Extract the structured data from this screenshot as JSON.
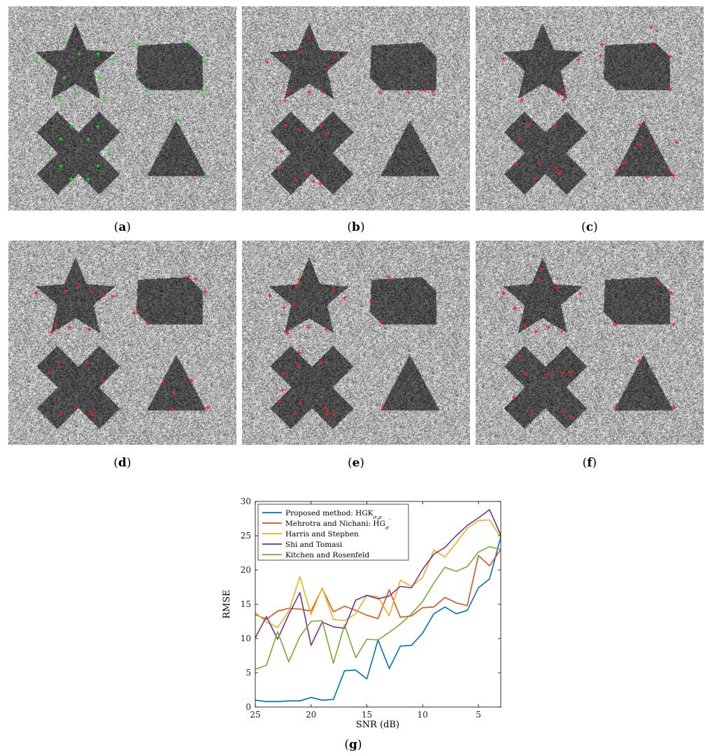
{
  "panels": [
    {
      "id": "a",
      "caption_open": "(",
      "caption_letter": "a",
      "caption_close": ")",
      "marker_color": "#22dd22"
    },
    {
      "id": "b",
      "caption_open": "(",
      "caption_letter": "b",
      "caption_close": ")",
      "marker_color": "#ff1a1a"
    },
    {
      "id": "c",
      "caption_open": "(",
      "caption_letter": "c",
      "caption_close": ")",
      "marker_color": "#ff1a1a"
    },
    {
      "id": "d",
      "caption_open": "(",
      "caption_letter": "d",
      "caption_close": ")",
      "marker_color": "#ff1a1a"
    },
    {
      "id": "e",
      "caption_open": "(",
      "caption_letter": "e",
      "caption_close": ")",
      "marker_color": "#ff1a1a"
    },
    {
      "id": "f",
      "caption_open": "(",
      "caption_letter": "f",
      "caption_close": ")",
      "marker_color": "#ff1a1a"
    }
  ],
  "chart_caption": {
    "open": "(",
    "letter": "g",
    "close": ")"
  },
  "chart_data": {
    "type": "line",
    "title": "",
    "xlabel": "SNR (dB)",
    "ylabel": "RMSE",
    "x_reversed": true,
    "xlim": [
      25,
      3
    ],
    "ylim": [
      0,
      30
    ],
    "xticks": [
      25,
      20,
      15,
      10,
      5
    ],
    "yticks": [
      0,
      5,
      10,
      15,
      20,
      25,
      30
    ],
    "grid": false,
    "legend_position": "top-left",
    "x": [
      25,
      24,
      23,
      22,
      21,
      20,
      19,
      18,
      17,
      16,
      15,
      14,
      13,
      12,
      11,
      10,
      9,
      8,
      7,
      6,
      5,
      4,
      3
    ],
    "series": [
      {
        "name": "Proposed method: HGK",
        "name_sub": "σ,ρ",
        "color": "#0072BD",
        "values": [
          1.0,
          0.8,
          0.8,
          0.9,
          0.9,
          1.4,
          1.0,
          1.1,
          5.3,
          5.4,
          4.1,
          9.8,
          5.6,
          8.9,
          9.0,
          10.8,
          13.6,
          14.6,
          13.6,
          14.1,
          17.4,
          18.7,
          24.8
        ]
      },
      {
        "name": "Mehrotra and Nichani: HG",
        "name_sub": "σ",
        "name_sup": "′",
        "color": "#D95319",
        "values": [
          13.5,
          12.8,
          14.0,
          14.4,
          14.3,
          14.0,
          17.3,
          13.9,
          14.7,
          14.1,
          13.4,
          12.9,
          17.1,
          13.1,
          13.3,
          14.5,
          14.6,
          16.0,
          15.2,
          14.8,
          22.1,
          20.6,
          23.0
        ]
      },
      {
        "name": "Harris and Stephen",
        "color": "#EDB120",
        "values": [
          13.8,
          12.4,
          11.6,
          14.0,
          19.0,
          13.5,
          17.4,
          12.8,
          12.6,
          13.6,
          16.3,
          16.1,
          13.3,
          18.5,
          17.6,
          18.9,
          22.9,
          21.9,
          23.9,
          26.1,
          27.2,
          27.3,
          24.8
        ]
      },
      {
        "name": "Shi and Tomasi",
        "color": "#7E2F8E",
        "values": [
          10.1,
          13.2,
          9.9,
          13.5,
          16.7,
          9.0,
          12.4,
          11.7,
          11.5,
          15.6,
          16.3,
          15.8,
          16.2,
          17.6,
          17.4,
          20.1,
          22.3,
          23.3,
          25.0,
          26.5,
          27.6,
          28.8,
          25.1
        ]
      },
      {
        "name": "Kitchen and Rosenfeld",
        "color": "#77AC30",
        "values": [
          5.5,
          6.1,
          11.0,
          6.6,
          10.3,
          12.5,
          12.6,
          6.4,
          12.0,
          7.2,
          9.9,
          9.8,
          10.9,
          12.1,
          13.6,
          15.4,
          18.1,
          20.4,
          19.8,
          20.5,
          22.6,
          23.4,
          23.0
        ]
      }
    ]
  }
}
